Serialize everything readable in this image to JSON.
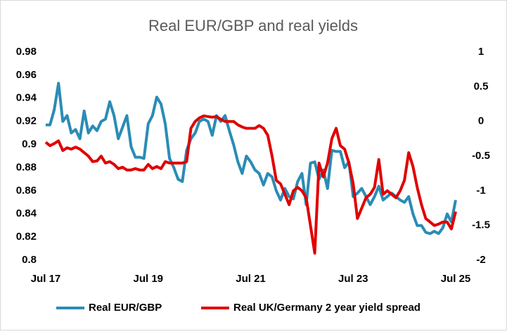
{
  "chart_data": {
    "type": "line",
    "title": "Real EUR/GBP and real yields",
    "categories": [
      "Jul 17",
      null,
      null,
      null,
      null,
      null,
      null,
      null,
      null,
      null,
      null,
      null,
      null,
      null,
      null,
      null,
      null,
      null,
      null,
      null,
      null,
      null,
      null,
      null,
      "Jul 19",
      null,
      null,
      null,
      null,
      null,
      null,
      null,
      null,
      null,
      null,
      null,
      null,
      null,
      null,
      null,
      null,
      null,
      null,
      null,
      null,
      null,
      null,
      null,
      "Jul 21",
      null,
      null,
      null,
      null,
      null,
      null,
      null,
      null,
      null,
      null,
      null,
      null,
      null,
      null,
      null,
      null,
      null,
      null,
      null,
      null,
      null,
      null,
      null,
      "Jul 23",
      null,
      null,
      null,
      null,
      null,
      null,
      null,
      null,
      null,
      null,
      null,
      null,
      null,
      null,
      null,
      null,
      null,
      null,
      null,
      null,
      null,
      null,
      null,
      "Jul 25"
    ],
    "series": [
      {
        "name": "Real EUR/GBP",
        "color": "#2a8cb5",
        "axis": "y",
        "values": [
          0.917,
          0.917,
          0.93,
          0.953,
          0.92,
          0.925,
          0.91,
          0.913,
          0.905,
          0.929,
          0.91,
          0.916,
          0.912,
          0.92,
          0.922,
          0.937,
          0.925,
          0.905,
          0.915,
          0.925,
          0.898,
          0.889,
          0.889,
          0.888,
          0.918,
          0.925,
          0.941,
          0.935,
          0.918,
          0.888,
          0.88,
          0.87,
          0.868,
          0.895,
          0.905,
          0.91,
          0.92,
          0.922,
          0.92,
          0.908,
          0.925,
          0.92,
          0.925,
          0.912,
          0.9,
          0.885,
          0.875,
          0.89,
          0.885,
          0.878,
          0.875,
          0.865,
          0.875,
          0.872,
          0.86,
          0.852,
          0.862,
          0.855,
          0.853,
          0.868,
          0.875,
          0.848,
          0.884,
          0.885,
          0.87,
          0.878,
          0.862,
          0.895,
          0.894,
          0.894,
          0.88,
          0.885,
          0.855,
          0.858,
          0.862,
          0.855,
          0.848,
          0.855,
          0.864,
          0.852,
          0.855,
          0.858,
          0.855,
          0.852,
          0.85,
          0.855,
          0.84,
          0.83,
          0.83,
          0.824,
          0.823,
          0.825,
          0.823,
          0.828,
          0.84,
          0.833,
          0.852
        ]
      },
      {
        "name": "Real UK/Germany 2 year yield spread",
        "color": "#e00000",
        "axis": "y2",
        "values": [
          -0.3,
          -0.35,
          -0.32,
          -0.28,
          -0.42,
          -0.38,
          -0.4,
          -0.37,
          -0.4,
          -0.45,
          -0.5,
          -0.58,
          -0.57,
          -0.5,
          -0.6,
          -0.58,
          -0.62,
          -0.68,
          -0.66,
          -0.7,
          -0.7,
          -0.68,
          -0.7,
          -0.7,
          -0.62,
          -0.68,
          -0.65,
          -0.68,
          -0.58,
          -0.6,
          -0.6,
          -0.6,
          -0.6,
          -0.58,
          -0.1,
          0.0,
          0.05,
          0.08,
          0.07,
          0.06,
          0.07,
          0.03,
          0.0,
          0.0,
          0.0,
          -0.05,
          -0.08,
          -0.1,
          -0.1,
          -0.1,
          -0.06,
          -0.1,
          -0.2,
          -0.5,
          -0.85,
          -0.9,
          -1.05,
          -1.2,
          -1.0,
          -0.95,
          -1.0,
          -1.1,
          -1.5,
          -1.9,
          -0.6,
          -0.8,
          -0.6,
          -0.25,
          -0.1,
          -0.35,
          -0.4,
          -0.6,
          -0.9,
          -1.4,
          -1.25,
          -1.1,
          -1.05,
          -0.95,
          -0.55,
          -1.05,
          -1.0,
          -1.05,
          -1.1,
          -1.0,
          -0.85,
          -0.45,
          -0.65,
          -0.95,
          -1.2,
          -1.4,
          -1.45,
          -1.5,
          -1.48,
          -1.45,
          -1.45,
          -1.55,
          -1.3
        ]
      }
    ],
    "ylim": [
      0.8,
      0.98
    ],
    "yticks": [
      0.8,
      0.82,
      0.84,
      0.86,
      0.88,
      0.9,
      0.92,
      0.94,
      0.96,
      0.98
    ],
    "y2lim": [
      -2,
      1
    ],
    "y2ticks": [
      -2,
      -1.5,
      -1,
      -0.5,
      0,
      0.5,
      1
    ],
    "grid": false,
    "legend": "bottom"
  }
}
